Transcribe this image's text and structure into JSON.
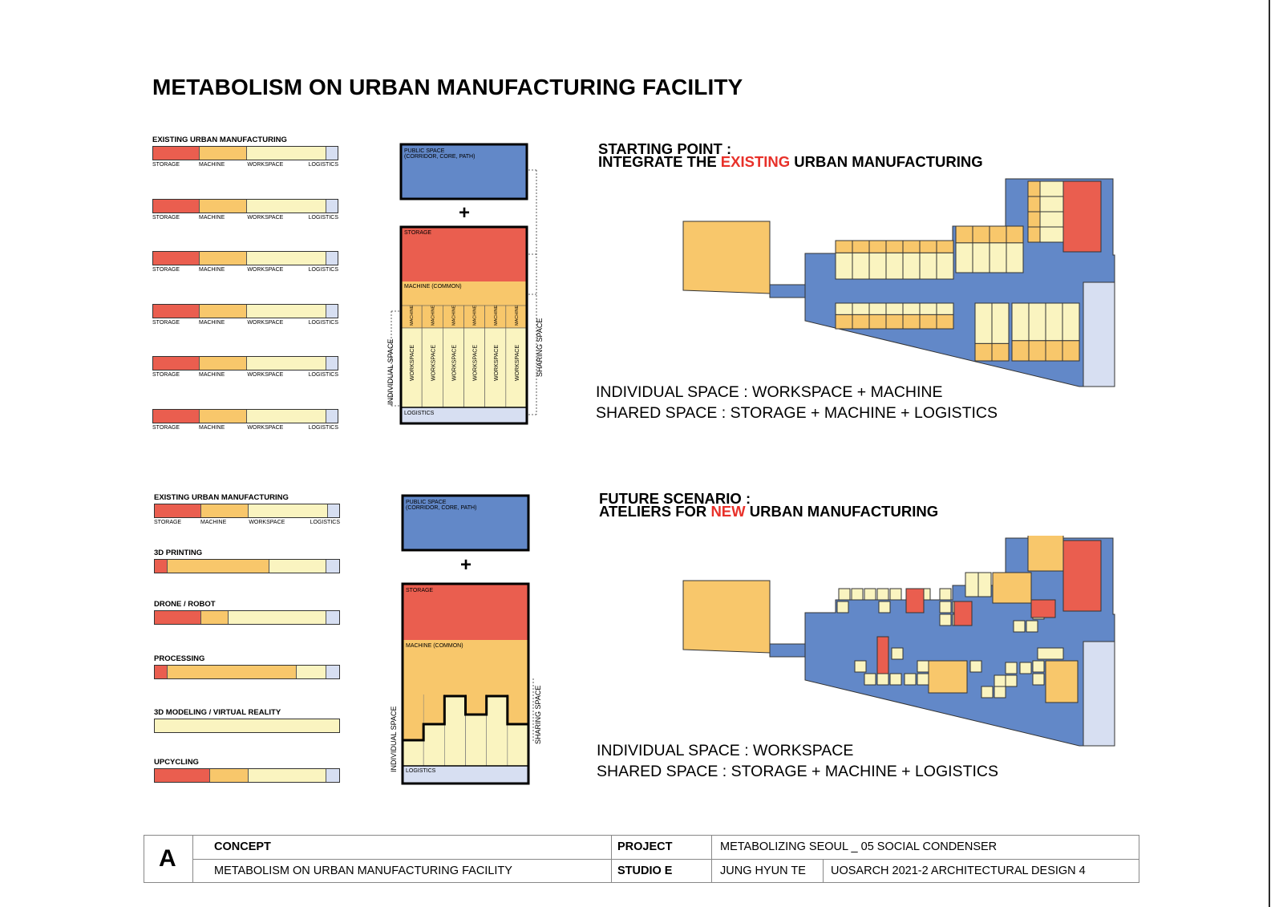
{
  "title": "METABOLISM ON URBAN MANUFACTURING FACILITY",
  "colors": {
    "storage": "#ea5e4f",
    "machine": "#f8c76b",
    "workspace": "#faf4c0",
    "logistics": "#d7dff2",
    "public": "#6288c8",
    "accent": "#e8312a"
  },
  "segment_labels": [
    "STORAGE",
    "MACHINE",
    "WORKSPACE",
    "LOGISTICS"
  ],
  "existing_bars": {
    "label": "EXISTING URBAN MANUFACTURING",
    "fractions": [
      0.25,
      0.26,
      0.43,
      0.06
    ],
    "count": 6
  },
  "future_bars": [
    {
      "label": "EXISTING URBAN MANUFACTURING",
      "fractions": [
        0.25,
        0.26,
        0.43,
        0.06
      ],
      "ticks": true
    },
    {
      "label": "3D PRINTING",
      "fractions": [
        0.07,
        0.55,
        0.31,
        0.07
      ]
    },
    {
      "label": "DRONE  / ROBOT",
      "fractions": [
        0.25,
        0.15,
        0.53,
        0.07
      ]
    },
    {
      "label": "PROCESSING",
      "fractions": [
        0.07,
        0.7,
        0.16,
        0.07
      ]
    },
    {
      "label": "3D MODELING / VIRTUAL REALITY",
      "fractions": [
        0,
        0,
        1,
        0
      ]
    },
    {
      "label": "UPCYCLING",
      "fractions": [
        0.3,
        0.21,
        0.42,
        0.07
      ]
    }
  ],
  "stack": {
    "public_label_1": "PUBLIC SPACE",
    "public_label_2": "(CORRIDOR, CORE, PATH)",
    "plus": "+",
    "storage": "STORAGE",
    "machine_common": "MACHINE (COMMON)",
    "machine": "MACHINE",
    "workspace": "WORKSPACE",
    "logistics": "LOGISTICS",
    "individual_space": "INDIVIDUAL SPACE",
    "sharing_space": "SHARING SPACE"
  },
  "scenario_top": {
    "line1": "STARTING POINT :",
    "line2_pre": "INTEGRATE THE ",
    "line2_accent": "EXISTING",
    "line2_post": " URBAN MANUFACTURING",
    "note1": "INDIVIDUAL SPACE : WORKSPACE + MACHINE",
    "note2": "SHARED SPACE : STORAGE + MACHINE + LOGISTICS"
  },
  "scenario_bottom": {
    "line1": "FUTURE SCENARIO :",
    "line2_pre": "ATELIERS FOR ",
    "line2_accent": "NEW",
    "line2_post": " URBAN MANUFACTURING",
    "note1": "INDIVIDUAL SPACE : WORKSPACE",
    "note2": "SHARED SPACE : STORAGE + MACHINE + LOGISTICS"
  },
  "title_block": {
    "letter": "A",
    "concept_label": "CONCEPT",
    "concept_value": "METABOLISM ON URBAN MANUFACTURING FACILITY",
    "project_label": "PROJECT",
    "project_value": "METABOLIZING SEOUL _ 05 SOCIAL CONDENSER",
    "studio_label": "STUDIO E",
    "author": "JUNG HYUN TE",
    "course": "UOSARCH 2021-2 ARCHITECTURAL DESIGN 4"
  }
}
